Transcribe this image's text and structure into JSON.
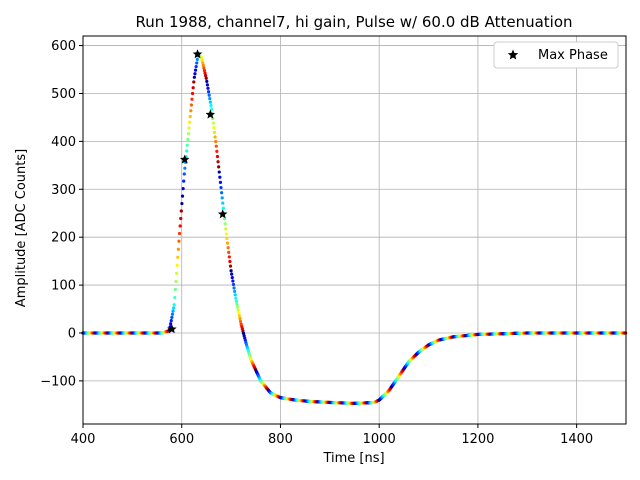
{
  "chart_data": {
    "type": "scatter",
    "title": "Run 1988, channel7, hi gain, Pulse w/ 60.0 dB Attenuation",
    "xlabel": "Time [ns]",
    "ylabel": "Amplitude [ADC Counts]",
    "xlim": [
      400,
      1500
    ],
    "ylim": [
      -190,
      620
    ],
    "xticks": [
      400,
      600,
      800,
      1000,
      1200,
      1400
    ],
    "yticks": [
      -100,
      0,
      100,
      200,
      300,
      400,
      500,
      600
    ],
    "grid": true,
    "legend": {
      "position": "top-right",
      "entries": [
        "Max Phase"
      ]
    },
    "pulse_shape": {
      "x": [
        400,
        560,
        575,
        585,
        595,
        605,
        615,
        625,
        633,
        640,
        650,
        660,
        670,
        680,
        690,
        700,
        710,
        720,
        730,
        740,
        760,
        780,
        800,
        830,
        860,
        900,
        950,
        990,
        1000,
        1020,
        1040,
        1060,
        1080,
        1100,
        1120,
        1150,
        1200,
        1300,
        1500
      ],
      "y": [
        0,
        0,
        5,
        60,
        200,
        330,
        430,
        530,
        580,
        575,
        530,
        470,
        390,
        300,
        210,
        130,
        70,
        20,
        -20,
        -55,
        -100,
        -125,
        -135,
        -140,
        -143,
        -145,
        -147,
        -145,
        -140,
        -120,
        -90,
        -60,
        -40,
        -25,
        -15,
        -8,
        -3,
        0,
        0
      ],
      "color_scheme": "jet"
    },
    "max_phase": {
      "name": "Max Phase",
      "x": [
        580,
        606,
        632,
        658,
        683
      ],
      "y": [
        8,
        362,
        582,
        456,
        248
      ]
    }
  }
}
